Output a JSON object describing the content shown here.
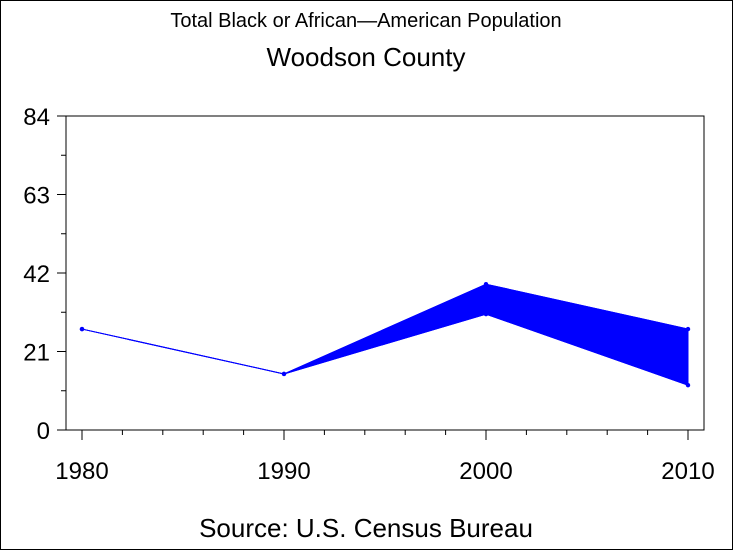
{
  "chart_data": {
    "type": "area",
    "title": "Woodson County",
    "subtitle": "Total Black or African—American Population",
    "footnote": "Source: U.S. Census Bureau",
    "xlabel": "",
    "ylabel": "",
    "x": [
      1980,
      1990,
      2000,
      2010
    ],
    "xticks": [
      "1980",
      "1990",
      "2000",
      "2010"
    ],
    "yticks": [
      "0",
      "21",
      "42",
      "63",
      "84"
    ],
    "ylim": [
      0,
      84
    ],
    "xlim": [
      1980,
      2010
    ],
    "grid": false,
    "legend": "none",
    "series": [
      {
        "values": [
          27,
          15,
          39,
          27
        ]
      },
      {
        "values": [
          27,
          15,
          31,
          12
        ]
      }
    ],
    "colors": {
      "series": "#0000ff",
      "axis": "#000000"
    }
  }
}
